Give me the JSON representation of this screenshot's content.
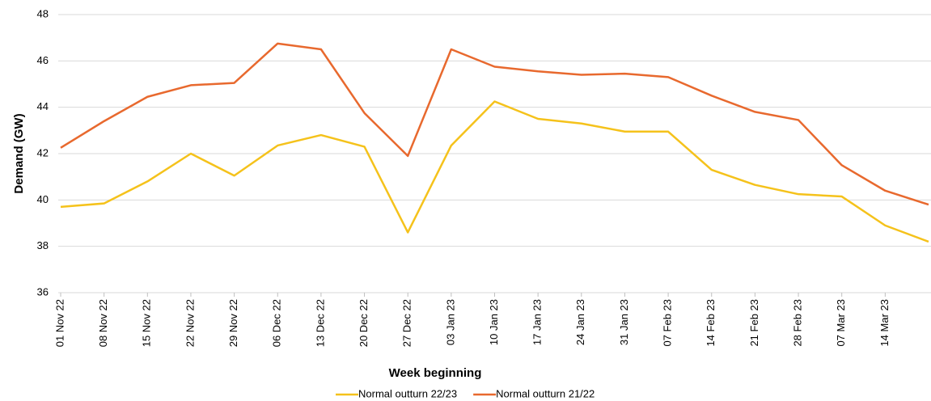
{
  "chart_data": {
    "type": "line",
    "x_label": "Week beginning",
    "y_label": "Demand (GW)",
    "categories": [
      "01 Nov 22",
      "08 Nov 22",
      "15 Nov 22",
      "22 Nov 22",
      "29 Nov 22",
      "06 Dec 22",
      "13 Dec 22",
      "20 Dec 22",
      "27 Dec 22",
      "03 Jan 23",
      "10 Jan 23",
      "17 Jan 23",
      "24 Jan 23",
      "31 Jan 23",
      "07 Feb 23",
      "14 Feb 23",
      "21 Feb 23",
      "28 Feb 23",
      "07 Mar 23",
      "14 Mar 23",
      null
    ],
    "series": [
      {
        "name": "Normal outturn 22/23",
        "color": "#f5c21b",
        "values": [
          39.7,
          39.85,
          40.8,
          42.0,
          41.05,
          42.35,
          42.8,
          42.3,
          38.6,
          42.35,
          44.25,
          43.5,
          43.3,
          42.95,
          42.95,
          41.3,
          40.65,
          40.25,
          40.15,
          38.9,
          38.2
        ]
      },
      {
        "name": "Normal outturn 21/22",
        "color": "#e8692e",
        "values": [
          42.25,
          43.4,
          44.45,
          44.95,
          45.05,
          46.75,
          46.5,
          43.75,
          41.9,
          46.5,
          45.75,
          45.55,
          45.4,
          45.45,
          45.3,
          44.5,
          43.8,
          43.45,
          41.5,
          40.4,
          39.8
        ]
      }
    ],
    "ylim": [
      36,
      48
    ],
    "yticks": [
      36,
      38,
      40,
      42,
      44,
      46,
      48
    ],
    "grid": true,
    "legend": "bottom"
  }
}
